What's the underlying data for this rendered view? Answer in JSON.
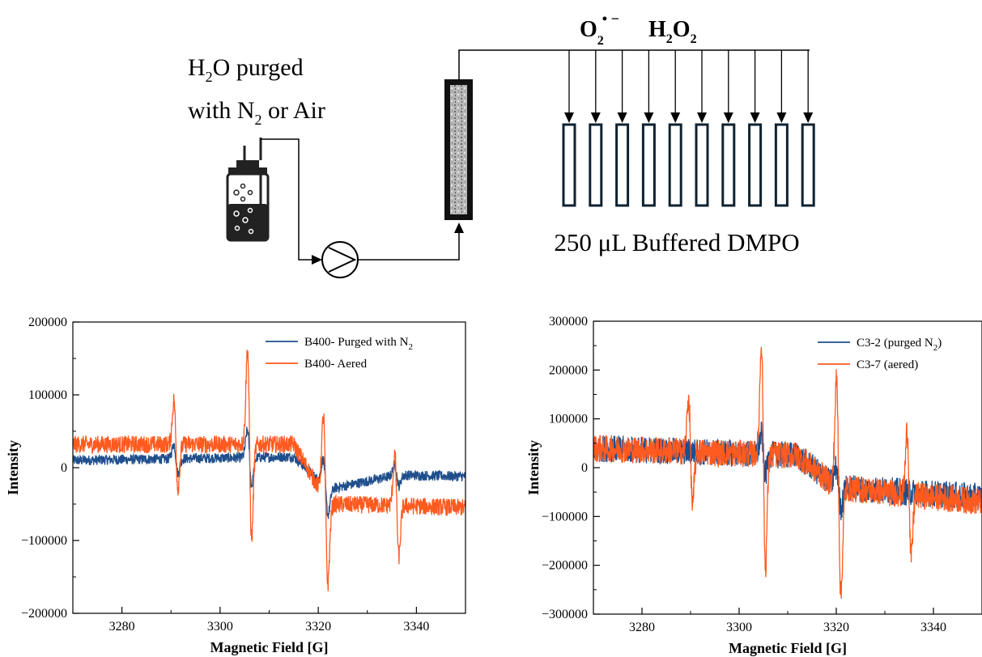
{
  "diagram": {
    "source_label_1": "H",
    "source_sub_1": "2",
    "source_label_2": "O purged",
    "source_label_3": "with N",
    "source_sub_3": "2",
    "source_label_4": " or Air",
    "species_1": "O",
    "species_1_sub": "2",
    "species_1_sup": "• −",
    "species_2_a": "H",
    "species_2_sub_a": "2",
    "species_2_b": "O",
    "species_2_sub_b": "2",
    "tube_label": "250 μL Buffered DMPO",
    "tube_count": 10
  },
  "chart_data": [
    {
      "type": "line",
      "xlabel": "Magnetic Field [G]",
      "ylabel": "Intensity",
      "xlim": [
        3270,
        3350
      ],
      "ylim": [
        -200000,
        200000
      ],
      "xticks": [
        3280,
        3300,
        3320,
        3340
      ],
      "yticks": [
        -200000,
        -100000,
        0,
        100000,
        200000
      ],
      "ytick_labels": [
        "−200000",
        "−100000",
        "0",
        "100000",
        "200000"
      ],
      "legend_position": "top-right",
      "grid": false,
      "series": [
        {
          "name_main": "B400- Purged with N",
          "name_sub": "2",
          "color": "#1f4e8c",
          "baseline": [
            [
              3270,
              10000
            ],
            [
              3315,
              15000
            ],
            [
              3322,
              -30000
            ],
            [
              3336,
              -10000
            ],
            [
              3350,
              -12000
            ]
          ],
          "noise": 7000,
          "peaks": [
            [
              3291,
              20000,
              0.45
            ],
            [
              3306,
              38000,
              0.45
            ],
            [
              3321.5,
              35000,
              0.5
            ],
            [
              3336,
              15000,
              0.45
            ]
          ]
        },
        {
          "name_main": "B400- Aered",
          "color": "#ff5a1f",
          "baseline": [
            [
              3270,
              32000
            ],
            [
              3315,
              32000
            ],
            [
              3322,
              -50000
            ],
            [
              3336,
              -52000
            ],
            [
              3350,
              -55000
            ]
          ],
          "noise": 12000,
          "peaks": [
            [
              3291,
              60000,
              0.42
            ],
            [
              3306,
              130000,
              0.42
            ],
            [
              3321.5,
              110000,
              0.45
            ],
            [
              3336,
              70000,
              0.42
            ]
          ]
        }
      ]
    },
    {
      "type": "line",
      "xlabel": "Magnetic Field [G]",
      "ylabel": "Intensity",
      "xlim": [
        3270,
        3350
      ],
      "ylim": [
        -300000,
        300000
      ],
      "xticks": [
        3280,
        3300,
        3320,
        3340
      ],
      "yticks": [
        -300000,
        -200000,
        -100000,
        0,
        100000,
        200000,
        300000
      ],
      "ytick_labels": [
        "−300000",
        "−200000",
        "−100000",
        "0",
        "100000",
        "200000",
        "300000"
      ],
      "legend_position": "top-right",
      "grid": false,
      "series": [
        {
          "name_main": "C3-2 (purged N",
          "name_sub": "2",
          "name_tail": ")",
          "color": "#1f4e8c",
          "baseline": [
            [
              3270,
              40000
            ],
            [
              3312,
              25000
            ],
            [
              3320,
              -40000
            ],
            [
              3350,
              -60000
            ]
          ],
          "noise": 28000,
          "peaks": [
            [
              3305,
              40000,
              0.45
            ],
            [
              3320.5,
              40000,
              0.5
            ]
          ]
        },
        {
          "name_main": "C3-7 (aered)",
          "color": "#ff5a1f",
          "baseline": [
            [
              3270,
              40000
            ],
            [
              3312,
              25000
            ],
            [
              3320,
              -40000
            ],
            [
              3350,
              -70000
            ]
          ],
          "noise": 28000,
          "peaks": [
            [
              3290,
              110000,
              0.42
            ],
            [
              3305,
              230000,
              0.42
            ],
            [
              3320.5,
              220000,
              0.45
            ],
            [
              3335,
              130000,
              0.42
            ]
          ]
        }
      ]
    }
  ]
}
